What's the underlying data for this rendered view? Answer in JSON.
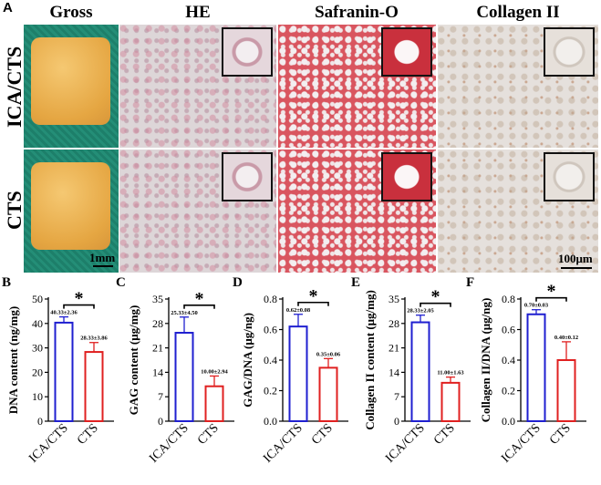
{
  "figure": {
    "panel_A_label": "A",
    "columns": [
      "Gross",
      "HE",
      "Safranin-O",
      "Collagen II"
    ],
    "rows": [
      "ICA/CTS",
      "CTS"
    ],
    "scale_gross": "1mm",
    "scale_micro": "100μm"
  },
  "colors": {
    "blue": "#1f1fd0",
    "red": "#e02020"
  },
  "chart_data": [
    {
      "panel": "B",
      "type": "bar",
      "categories": [
        "ICA/CTS",
        "CTS"
      ],
      "values": [
        40.33,
        28.33
      ],
      "errors": [
        2.36,
        3.86
      ],
      "value_labels": [
        "40.33±2.36",
        "28.33±3.86"
      ],
      "ylabel": "DNA content (ng/mg)",
      "ylim": [
        0,
        50
      ],
      "yticks": [
        "0",
        "10",
        "20",
        "30",
        "40",
        "50"
      ],
      "significance": "*"
    },
    {
      "panel": "C",
      "type": "bar",
      "categories": [
        "ICA/CTS",
        "CTS"
      ],
      "values": [
        25.33,
        10.0
      ],
      "errors": [
        4.5,
        2.94
      ],
      "value_labels": [
        "25.33±4.50",
        "10.00±2.94"
      ],
      "ylabel": "GAG content (μg/mg)",
      "ylim": [
        0,
        35
      ],
      "yticks": [
        "0",
        "7",
        "14",
        "21",
        "28",
        "35"
      ],
      "significance": "*"
    },
    {
      "panel": "D",
      "type": "bar",
      "categories": [
        "ICA/CTS",
        "CTS"
      ],
      "values": [
        0.62,
        0.35
      ],
      "errors": [
        0.08,
        0.06
      ],
      "value_labels": [
        "0.62±0.08",
        "0.35±0.06"
      ],
      "ylabel": "GAG/DNA (μg/ng)",
      "ylim": [
        0,
        0.8
      ],
      "yticks": [
        "0.0",
        "0.2",
        "0.4",
        "0.6",
        "0.8"
      ],
      "significance": "*"
    },
    {
      "panel": "E",
      "type": "bar",
      "categories": [
        "ICA/CTS",
        "CTS"
      ],
      "values": [
        28.33,
        11.0
      ],
      "errors": [
        2.05,
        1.63
      ],
      "value_labels": [
        "28.33±2.05",
        "11.00±1.63"
      ],
      "ylabel": "Collagen II content (μg/mg)",
      "ylim": [
        0,
        35
      ],
      "yticks": [
        "0",
        "7",
        "14",
        "21",
        "28",
        "35"
      ],
      "significance": "*"
    },
    {
      "panel": "F",
      "type": "bar",
      "categories": [
        "ICA/CTS",
        "CTS"
      ],
      "values": [
        0.7,
        0.4
      ],
      "errors": [
        0.03,
        0.12
      ],
      "value_labels": [
        "0.70±0.03",
        "0.40±0.12"
      ],
      "ylabel": "Collagen II/DNA (μg/ng)",
      "ylim": [
        0,
        0.8
      ],
      "yticks": [
        "0.0",
        "0.2",
        "0.4",
        "0.6",
        "0.8"
      ],
      "significance": "*"
    }
  ]
}
